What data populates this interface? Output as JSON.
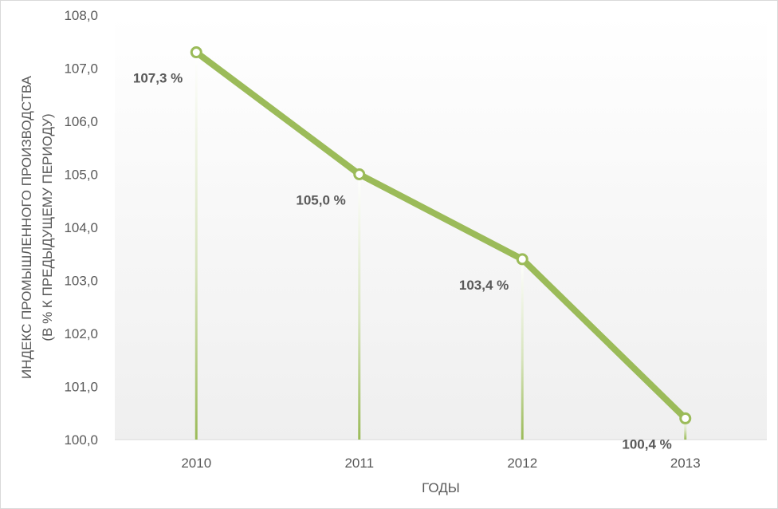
{
  "chart_data": {
    "type": "line",
    "categories": [
      "2010",
      "2011",
      "2012",
      "2013"
    ],
    "values": [
      107.3,
      105.0,
      103.4,
      100.4
    ],
    "data_labels": [
      "107,3 %",
      "105,0 %",
      "103,4 %",
      "100,4 %"
    ],
    "y_ticks": [
      "100,0",
      "101,0",
      "102,0",
      "103,0",
      "104,0",
      "105,0",
      "106,0",
      "107,0",
      "108,0"
    ],
    "ylim": [
      100,
      108
    ],
    "xlabel": "ГОДЫ",
    "ylabel_line1": "ИНДЕКС ПРОМЫШЛЕННОГО ПРОИЗВОДСТВА",
    "ylabel_line2": "(В % К ПРЕДЫДУЩЕМУ ПЕРИОДУ)",
    "drop_lines": true,
    "grid": false,
    "legend": "none",
    "line_color": "#9bbb59"
  }
}
